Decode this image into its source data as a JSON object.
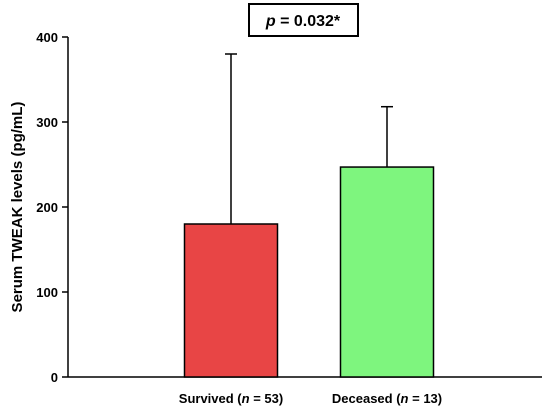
{
  "chart_data": {
    "type": "bar",
    "title": "",
    "xlabel": "",
    "ylabel": "Serum TWEAK levels (pg/mL)",
    "ylim": [
      0,
      400
    ],
    "yticks": [
      0,
      100,
      200,
      300,
      400
    ],
    "grid": false,
    "categories": [
      {
        "name": "Survived",
        "n_prefix": "(",
        "n_symbol": "n",
        "n_suffix": " = 53)",
        "value": 180,
        "error_upper": 380,
        "color": "#e84545"
      },
      {
        "name": "Deceased",
        "n_prefix": "(",
        "n_symbol": "n",
        "n_suffix": " = 13)",
        "value": 247,
        "error_upper": 318,
        "color": "#7ef57e"
      }
    ],
    "annotation": {
      "p_symbol": "p",
      "p_text": " = 0.032*"
    }
  }
}
